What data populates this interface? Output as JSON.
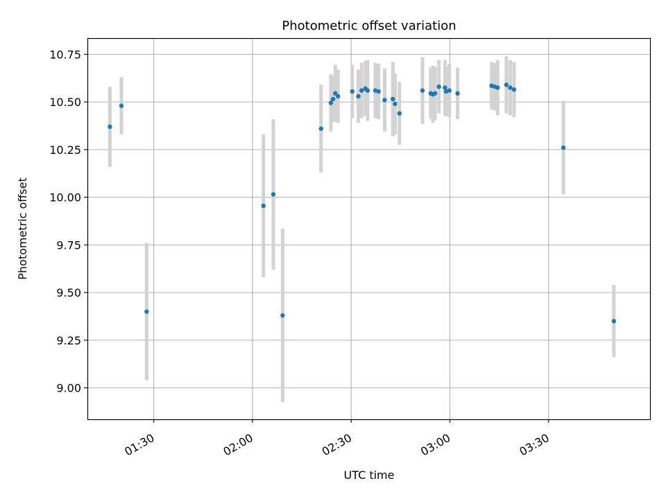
{
  "chart_data": {
    "type": "scatter",
    "title": "Photometric offset variation",
    "xlabel": "UTC time",
    "ylabel": "Photometric offset",
    "x_ticks": [
      "01:30",
      "02:00",
      "02:30",
      "03:00",
      "03:30"
    ],
    "y_ticks": [
      "9.00",
      "9.25",
      "9.50",
      "9.75",
      "10.00",
      "10.25",
      "10.50",
      "10.75"
    ],
    "xlim": [
      "01:09:50",
      "04:00:50"
    ],
    "ylim": [
      8.835,
      10.835
    ],
    "grid": true,
    "colors": {
      "point": "#1f77b4",
      "errorbar": "#d3d3d3",
      "grid": "#b0b0b0"
    },
    "points": [
      {
        "x": "01:16:40",
        "y": 10.37,
        "err": 0.21
      },
      {
        "x": "01:20:10",
        "y": 10.48,
        "err": 0.15
      },
      {
        "x": "01:27:50",
        "y": 9.4,
        "err": 0.36
      },
      {
        "x": "02:03:20",
        "y": 9.955,
        "err": 0.375
      },
      {
        "x": "02:06:20",
        "y": 10.015,
        "err": 0.395
      },
      {
        "x": "02:09:10",
        "y": 9.38,
        "err": 0.455
      },
      {
        "x": "02:20:50",
        "y": 10.36,
        "err": 0.23
      },
      {
        "x": "02:23:50",
        "y": 10.495,
        "err": 0.15
      },
      {
        "x": "02:24:30",
        "y": 10.515,
        "err": 0.12
      },
      {
        "x": "02:25:10",
        "y": 10.545,
        "err": 0.15
      },
      {
        "x": "02:26:00",
        "y": 10.53,
        "err": 0.14
      },
      {
        "x": "02:30:20",
        "y": 10.555,
        "err": 0.14
      },
      {
        "x": "02:32:10",
        "y": 10.53,
        "err": 0.14
      },
      {
        "x": "02:33:10",
        "y": 10.56,
        "err": 0.145
      },
      {
        "x": "02:34:20",
        "y": 10.57,
        "err": 0.145
      },
      {
        "x": "02:35:00",
        "y": 10.56,
        "err": 0.16
      },
      {
        "x": "02:37:20",
        "y": 10.56,
        "err": 0.145
      },
      {
        "x": "02:38:20",
        "y": 10.555,
        "err": 0.145
      },
      {
        "x": "02:40:10",
        "y": 10.51,
        "err": 0.165
      },
      {
        "x": "02:42:40",
        "y": 10.515,
        "err": 0.195
      },
      {
        "x": "02:43:20",
        "y": 10.49,
        "err": 0.16
      },
      {
        "x": "02:44:40",
        "y": 10.44,
        "err": 0.165
      },
      {
        "x": "02:51:40",
        "y": 10.56,
        "err": 0.175
      },
      {
        "x": "02:54:10",
        "y": 10.545,
        "err": 0.135
      },
      {
        "x": "02:54:50",
        "y": 10.54,
        "err": 0.15
      },
      {
        "x": "02:55:30",
        "y": 10.545,
        "err": 0.14
      },
      {
        "x": "02:56:40",
        "y": 10.58,
        "err": 0.14
      },
      {
        "x": "02:58:30",
        "y": 10.575,
        "err": 0.145
      },
      {
        "x": "02:58:50",
        "y": 10.555,
        "err": 0.13
      },
      {
        "x": "02:59:50",
        "y": 10.56,
        "err": 0.14
      },
      {
        "x": "03:02:20",
        "y": 10.545,
        "err": 0.135
      },
      {
        "x": "03:12:40",
        "y": 10.585,
        "err": 0.125
      },
      {
        "x": "03:13:40",
        "y": 10.58,
        "err": 0.125
      },
      {
        "x": "03:14:30",
        "y": 10.575,
        "err": 0.145
      },
      {
        "x": "03:17:10",
        "y": 10.59,
        "err": 0.15
      },
      {
        "x": "03:18:20",
        "y": 10.575,
        "err": 0.145
      },
      {
        "x": "03:19:30",
        "y": 10.565,
        "err": 0.145
      },
      {
        "x": "03:34:30",
        "y": 10.26,
        "err": 0.245
      },
      {
        "x": "03:49:50",
        "y": 9.35,
        "err": 0.19
      }
    ]
  }
}
